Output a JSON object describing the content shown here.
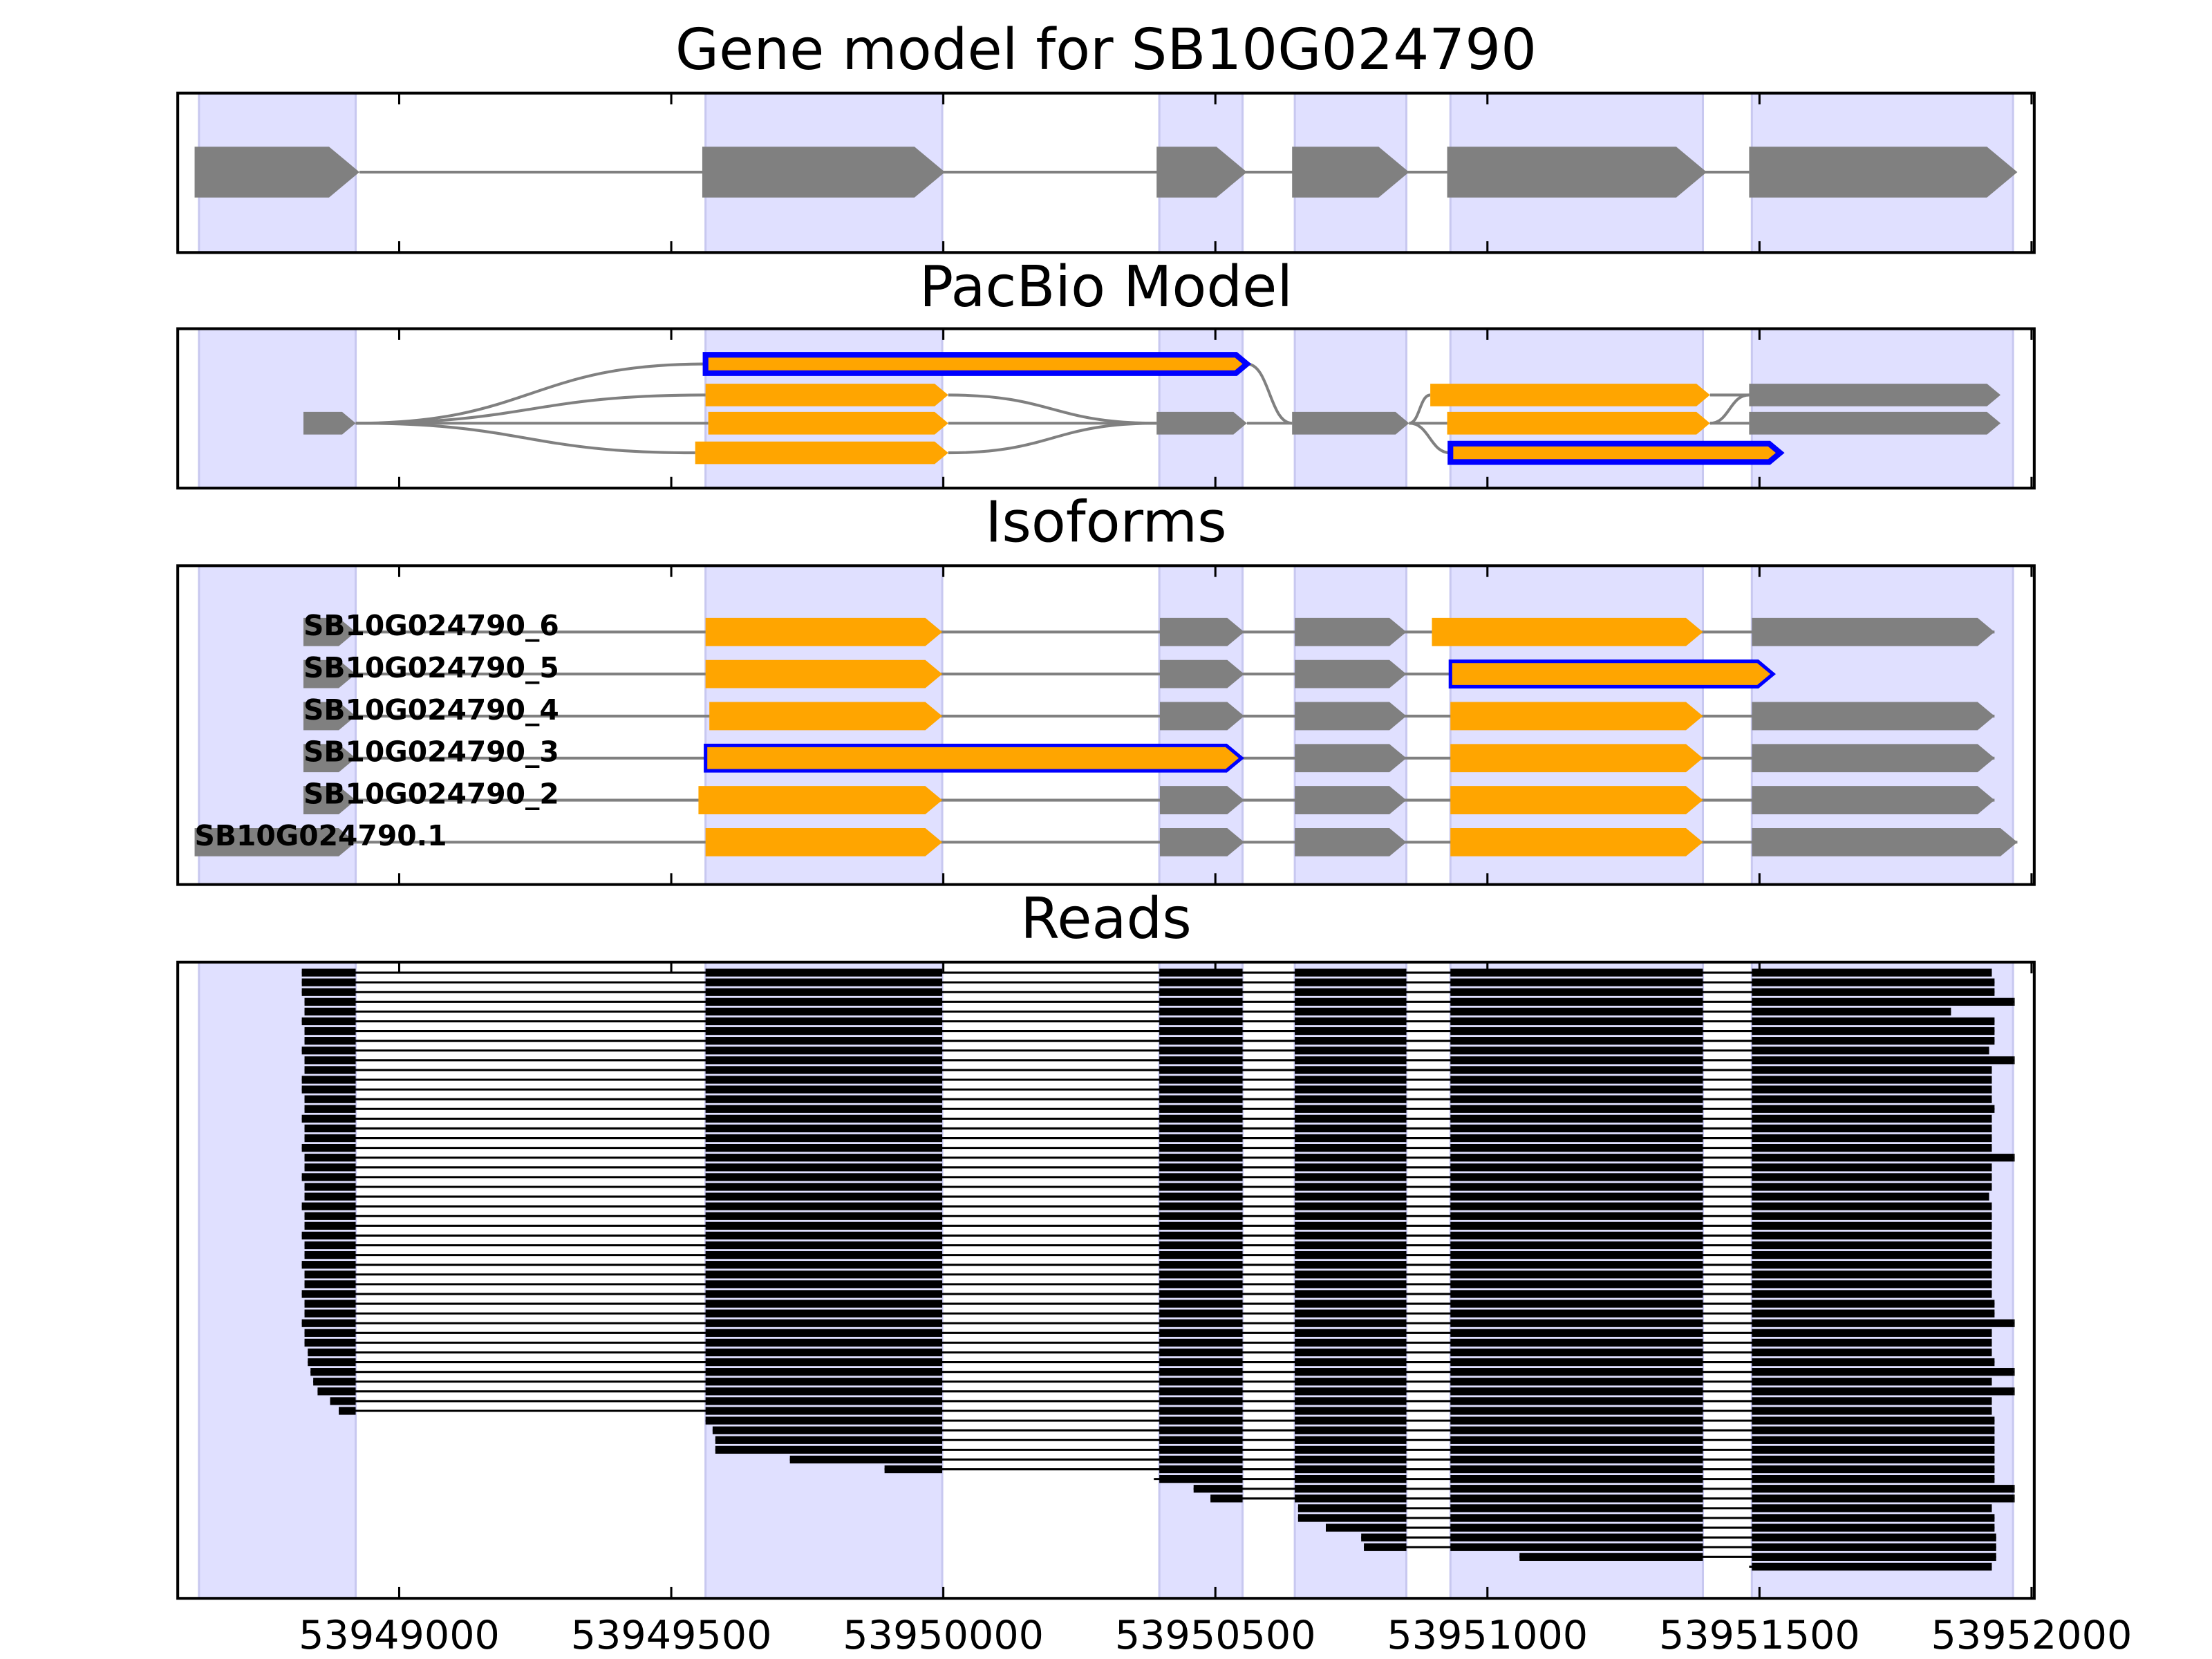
{
  "chart_data": {
    "type": "gene_tracks",
    "xlim": [
      53948593,
      53952005
    ],
    "xticks": [
      53949000,
      53949500,
      53950000,
      53950500,
      53951000,
      53951500,
      53952000
    ],
    "shade_color": "#e0e0ff",
    "shaded": [
      [
        53948632,
        53948920
      ],
      [
        53949563,
        53949998
      ],
      [
        53950397,
        53950550
      ],
      [
        53950646,
        53950851
      ],
      [
        53950932,
        53951396
      ],
      [
        53951486,
        53951966
      ]
    ],
    "line_color": "#808080",
    "read_color": "#000000",
    "panels": [
      {
        "kind": "gene",
        "title": "Gene model for SB10G024790",
        "color": "#808080",
        "exons": [
          [
            53948624,
            53948927
          ],
          [
            53949557,
            53950003
          ],
          [
            53950392,
            53950558
          ],
          [
            53950641,
            53950856
          ],
          [
            53950926,
            53951403
          ],
          [
            53951481,
            53951974
          ]
        ]
      },
      {
        "kind": "graph",
        "title": "PacBio Model",
        "rows": [
          [
            {
              "start": 53949563,
              "end": 53950558,
              "color": "#ffa500",
              "outline": "#0000ff"
            }
          ],
          [
            {
              "start": 53949563,
              "end": 53950009,
              "color": "#ffa500"
            },
            {
              "start": 53950895,
              "end": 53951409,
              "color": "#ffa500"
            },
            {
              "start": 53951481,
              "end": 53951943,
              "color": "#808080"
            }
          ],
          [
            {
              "start": 53948824,
              "end": 53948920,
              "color": "#808080"
            },
            {
              "start": 53949568,
              "end": 53950009,
              "color": "#ffa500"
            },
            {
              "start": 53950392,
              "end": 53950558,
              "color": "#808080"
            },
            {
              "start": 53950641,
              "end": 53950856,
              "color": "#808080"
            },
            {
              "start": 53950926,
              "end": 53951409,
              "color": "#ffa500"
            },
            {
              "start": 53951481,
              "end": 53951943,
              "color": "#808080"
            }
          ],
          [
            {
              "start": 53949544,
              "end": 53950009,
              "color": "#ffa500"
            },
            {
              "start": 53950932,
              "end": 53951538,
              "color": "#ffa500",
              "outline": "#0000ff"
            }
          ]
        ],
        "edges": [
          [
            [
              2,
              0
            ],
            [
              0,
              0
            ]
          ],
          [
            [
              2,
              0
            ],
            [
              1,
              0
            ]
          ],
          [
            [
              2,
              0
            ],
            [
              2,
              1
            ]
          ],
          [
            [
              2,
              0
            ],
            [
              3,
              0
            ]
          ],
          [
            [
              1,
              0
            ],
            [
              2,
              2
            ]
          ],
          [
            [
              2,
              1
            ],
            [
              2,
              2
            ]
          ],
          [
            [
              3,
              0
            ],
            [
              2,
              2
            ]
          ],
          [
            [
              0,
              0
            ],
            [
              2,
              3
            ]
          ],
          [
            [
              2,
              2
            ],
            [
              2,
              3
            ]
          ],
          [
            [
              2,
              3
            ],
            [
              1,
              1
            ]
          ],
          [
            [
              2,
              3
            ],
            [
              2,
              4
            ]
          ],
          [
            [
              2,
              3
            ],
            [
              3,
              1
            ]
          ],
          [
            [
              1,
              1
            ],
            [
              1,
              2
            ]
          ],
          [
            [
              2,
              4
            ],
            [
              2,
              5
            ]
          ],
          [
            [
              2,
              4
            ],
            [
              1,
              2
            ]
          ]
        ]
      },
      {
        "kind": "isoforms",
        "title": "Isoforms",
        "isoforms": [
          {
            "name": "SB10G024790_6",
            "exons": [
              {
                "start": 53948824,
                "end": 53948920,
                "color": "#808080"
              },
              {
                "start": 53949563,
                "end": 53949998,
                "color": "#ffa500"
              },
              {
                "start": 53950398,
                "end": 53950553,
                "color": "#808080"
              },
              {
                "start": 53950646,
                "end": 53950851,
                "color": "#808080"
              },
              {
                "start": 53950898,
                "end": 53951396,
                "color": "#ffa500"
              },
              {
                "start": 53951486,
                "end": 53951932,
                "color": "#808080"
              }
            ]
          },
          {
            "name": "SB10G024790_5",
            "exons": [
              {
                "start": 53948824,
                "end": 53948920,
                "color": "#808080"
              },
              {
                "start": 53949563,
                "end": 53949998,
                "color": "#ffa500"
              },
              {
                "start": 53950398,
                "end": 53950553,
                "color": "#808080"
              },
              {
                "start": 53950646,
                "end": 53950851,
                "color": "#808080"
              },
              {
                "start": 53950932,
                "end": 53951525,
                "color": "#ffa500",
                "outline": "#0000ff"
              }
            ]
          },
          {
            "name": "SB10G024790_4",
            "exons": [
              {
                "start": 53948824,
                "end": 53948920,
                "color": "#808080"
              },
              {
                "start": 53949570,
                "end": 53949998,
                "color": "#ffa500"
              },
              {
                "start": 53950398,
                "end": 53950553,
                "color": "#808080"
              },
              {
                "start": 53950646,
                "end": 53950851,
                "color": "#808080"
              },
              {
                "start": 53950932,
                "end": 53951396,
                "color": "#ffa500"
              },
              {
                "start": 53951486,
                "end": 53951932,
                "color": "#808080"
              }
            ]
          },
          {
            "name": "SB10G024790_3",
            "exons": [
              {
                "start": 53948824,
                "end": 53948920,
                "color": "#808080"
              },
              {
                "start": 53949563,
                "end": 53950548,
                "color": "#ffa500",
                "outline": "#0000ff"
              },
              {
                "start": 53950646,
                "end": 53950851,
                "color": "#808080"
              },
              {
                "start": 53950932,
                "end": 53951396,
                "color": "#ffa500"
              },
              {
                "start": 53951486,
                "end": 53951932,
                "color": "#808080"
              }
            ]
          },
          {
            "name": "SB10G024790_2",
            "exons": [
              {
                "start": 53948824,
                "end": 53948920,
                "color": "#808080"
              },
              {
                "start": 53949550,
                "end": 53949998,
                "color": "#ffa500"
              },
              {
                "start": 53950398,
                "end": 53950553,
                "color": "#808080"
              },
              {
                "start": 53950646,
                "end": 53950851,
                "color": "#808080"
              },
              {
                "start": 53950932,
                "end": 53951396,
                "color": "#ffa500"
              },
              {
                "start": 53951486,
                "end": 53951932,
                "color": "#808080"
              }
            ]
          },
          {
            "name": "SB10G024790.1",
            "exons": [
              {
                "start": 53948624,
                "end": 53948920,
                "color": "#808080"
              },
              {
                "start": 53949563,
                "end": 53949998,
                "color": "#ffa500"
              },
              {
                "start": 53950398,
                "end": 53950553,
                "color": "#808080"
              },
              {
                "start": 53950646,
                "end": 53950851,
                "color": "#808080"
              },
              {
                "start": 53950932,
                "end": 53951396,
                "color": "#ffa500"
              },
              {
                "start": 53951486,
                "end": 53951974,
                "color": "#808080"
              }
            ]
          }
        ]
      },
      {
        "kind": "reads",
        "title": "Reads",
        "reads": [
          [
            53948821,
            53951927
          ],
          [
            53948821,
            53951932
          ],
          [
            53948821,
            53951932
          ],
          [
            53948826,
            53951969
          ],
          [
            53948826,
            53951852
          ],
          [
            53948821,
            53951932
          ],
          [
            53948826,
            53951932
          ],
          [
            53948826,
            53951932
          ],
          [
            53948821,
            53951922
          ],
          [
            53948826,
            53951969
          ],
          [
            53948826,
            53951927
          ],
          [
            53948821,
            53951927
          ],
          [
            53948821,
            53951927
          ],
          [
            53948826,
            53951927
          ],
          [
            53948826,
            53951932
          ],
          [
            53948821,
            53951927
          ],
          [
            53948826,
            53951927
          ],
          [
            53948826,
            53951927
          ],
          [
            53948821,
            53951927
          ],
          [
            53948826,
            53951969
          ],
          [
            53948826,
            53951927
          ],
          [
            53948821,
            53951927
          ],
          [
            53948826,
            53951927
          ],
          [
            53948826,
            53951922
          ],
          [
            53948821,
            53951927
          ],
          [
            53948826,
            53951927
          ],
          [
            53948826,
            53951927
          ],
          [
            53948821,
            53951927
          ],
          [
            53948826,
            53951927
          ],
          [
            53948826,
            53951927
          ],
          [
            53948821,
            53951927
          ],
          [
            53948826,
            53951927
          ],
          [
            53948826,
            53951927
          ],
          [
            53948821,
            53951927
          ],
          [
            53948826,
            53951932
          ],
          [
            53948826,
            53951932
          ],
          [
            53948821,
            53951969
          ],
          [
            53948826,
            53951927
          ],
          [
            53948826,
            53951927
          ],
          [
            53948832,
            53951927
          ],
          [
            53948832,
            53951932
          ],
          [
            53948837,
            53951969
          ],
          [
            53948842,
            53951927
          ],
          [
            53948850,
            53951969
          ],
          [
            53948873,
            53951927
          ],
          [
            53948889,
            53951927
          ],
          [
            53949563,
            53951932
          ],
          [
            53949576,
            53951932
          ],
          [
            53949581,
            53951932
          ],
          [
            53949581,
            53951932
          ],
          [
            53949718,
            53951932
          ],
          [
            53949892,
            53951932
          ],
          [
            53950387,
            53951932
          ],
          [
            53950460,
            53951969
          ],
          [
            53950491,
            53951969
          ],
          [
            53950652,
            53951927
          ],
          [
            53950652,
            53951932
          ],
          [
            53950703,
            53951932
          ],
          [
            53950768,
            53951935
          ],
          [
            53950773,
            53951935
          ],
          [
            53951059,
            53951935
          ],
          [
            53951481,
            53951927
          ]
        ]
      }
    ]
  }
}
